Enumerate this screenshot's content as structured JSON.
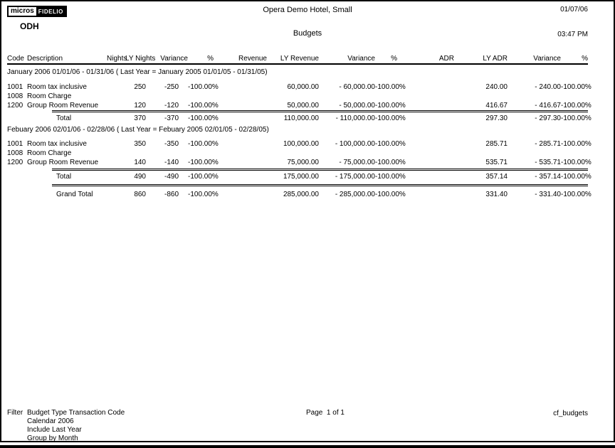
{
  "page": {
    "logo_micros": "micros",
    "logo_fidelio": "FIDELIO",
    "property_code": "ODH",
    "hotel_title": "Opera Demo Hotel, Small",
    "report_title": "Budgets",
    "date": "01/07/06",
    "time": "03:47 PM"
  },
  "colors": {
    "text": "#000000",
    "page_background": "#ffffff",
    "logo_fidelio_background": "#000000"
  },
  "table": {
    "headers": [
      "Code",
      "Description",
      "Nights",
      "LY Nights",
      "Variance",
      "%",
      "Revenue",
      "LY Revenue",
      "Variance",
      "%",
      "ADR",
      "LY ADR",
      "Variance",
      "%"
    ],
    "sections": [
      {
        "title": "January 2006 01/01/06 - 01/31/06 ( Last Year = January 2005 01/01/05 - 01/31/05)",
        "rows": [
          {
            "code": "1001",
            "description": "Room tax inclusive",
            "nights": "",
            "ly_nights": "250",
            "var_nights": "-250",
            "pct_nights": "-100.00%",
            "revenue": "",
            "ly_revenue": "60,000.00",
            "var_revenue": "- 60,000.00",
            "pct_revenue": "-100.00%",
            "adr": "",
            "ly_adr": "240.00",
            "var_adr": "- 240.00",
            "pct_adr": "-100.00%"
          },
          {
            "code": "1008",
            "description": "Room Charge",
            "nights": "",
            "ly_nights": "",
            "var_nights": "",
            "pct_nights": "",
            "revenue": "",
            "ly_revenue": "",
            "var_revenue": "",
            "pct_revenue": "",
            "adr": "",
            "ly_adr": "",
            "var_adr": "",
            "pct_adr": ""
          },
          {
            "code": "1200",
            "description": "Group Room Revenue",
            "nights": "",
            "ly_nights": "120",
            "var_nights": "-120",
            "pct_nights": "-100.00%",
            "revenue": "",
            "ly_revenue": "50,000.00",
            "var_revenue": "- 50,000.00",
            "pct_revenue": "-100.00%",
            "adr": "",
            "ly_adr": "416.67",
            "var_adr": "- 416.67",
            "pct_adr": "-100.00%"
          }
        ],
        "total": {
          "label": "Total",
          "nights": "",
          "ly_nights": "370",
          "var_nights": "-370",
          "pct_nights": "-100.00%",
          "revenue": "",
          "ly_revenue": "110,000.00",
          "var_revenue": "- 110,000.00",
          "pct_revenue": "-100.00%",
          "adr": "",
          "ly_adr": "297.30",
          "var_adr": "- 297.30",
          "pct_adr": "-100.00%"
        }
      },
      {
        "title": "Febuary 2006 02/01/06 - 02/28/06 ( Last Year = Febuary 2005 02/01/05 - 02/28/05)",
        "rows": [
          {
            "code": "1001",
            "description": "Room tax inclusive",
            "nights": "",
            "ly_nights": "350",
            "var_nights": "-350",
            "pct_nights": "-100.00%",
            "revenue": "",
            "ly_revenue": "100,000.00",
            "var_revenue": "- 100,000.00",
            "pct_revenue": "-100.00%",
            "adr": "",
            "ly_adr": "285.71",
            "var_adr": "- 285.71",
            "pct_adr": "-100.00%"
          },
          {
            "code": "1008",
            "description": "Room Charge",
            "nights": "",
            "ly_nights": "",
            "var_nights": "",
            "pct_nights": "",
            "revenue": "",
            "ly_revenue": "",
            "var_revenue": "",
            "pct_revenue": "",
            "adr": "",
            "ly_adr": "",
            "var_adr": "",
            "pct_adr": ""
          },
          {
            "code": "1200",
            "description": "Group Room Revenue",
            "nights": "",
            "ly_nights": "140",
            "var_nights": "-140",
            "pct_nights": "-100.00%",
            "revenue": "",
            "ly_revenue": "75,000.00",
            "var_revenue": "- 75,000.00",
            "pct_revenue": "-100.00%",
            "adr": "",
            "ly_adr": "535.71",
            "var_adr": "- 535.71",
            "pct_adr": "-100.00%"
          }
        ],
        "total": {
          "label": "Total",
          "nights": "",
          "ly_nights": "490",
          "var_nights": "-490",
          "pct_nights": "-100.00%",
          "revenue": "",
          "ly_revenue": "175,000.00",
          "var_revenue": "- 175,000.00",
          "pct_revenue": "-100.00%",
          "adr": "",
          "ly_adr": "357.14",
          "var_adr": "- 357.14",
          "pct_adr": "-100.00%"
        }
      }
    ],
    "grand_total": {
      "label": "Grand Total",
      "nights": "",
      "ly_nights": "860",
      "var_nights": "-860",
      "pct_nights": "-100.00%",
      "revenue": "",
      "ly_revenue": "285,000.00",
      "var_revenue": "- 285,000.00",
      "pct_revenue": "-100.00%",
      "adr": "",
      "ly_adr": "331.40",
      "var_adr": "- 331.40",
      "pct_adr": "-100.00%"
    }
  },
  "footer": {
    "filter_label": "Filter",
    "filter_lines": [
      "Budget Type Transaction Code",
      "Calendar 2006",
      "Include Last Year",
      "Group by Month"
    ],
    "page_text": "Page  1 of 1",
    "report_id": "cf_budgets"
  }
}
